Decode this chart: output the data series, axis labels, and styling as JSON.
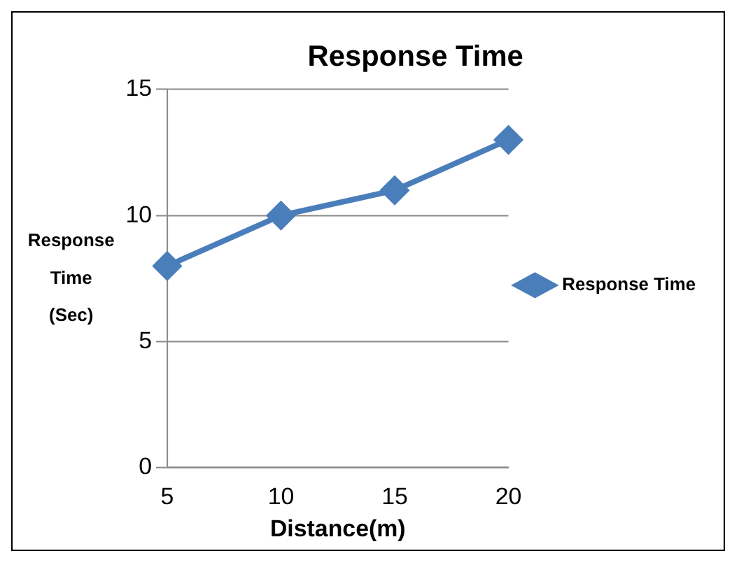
{
  "chart_data": {
    "type": "line",
    "title": "Response Time",
    "xlabel": "Distance(m)",
    "ylabel": "Response Time (Sec)",
    "categories": [
      "5",
      "10",
      "15",
      "20"
    ],
    "series": [
      {
        "name": "Response Time",
        "color": "#4a7ebb",
        "values": [
          8,
          10,
          11,
          13
        ]
      }
    ],
    "ylim": [
      0,
      15
    ],
    "yticks": [
      0,
      5,
      10,
      15
    ],
    "grid": "y",
    "legend": "right",
    "marker": "diamond",
    "line_style": "solid"
  }
}
